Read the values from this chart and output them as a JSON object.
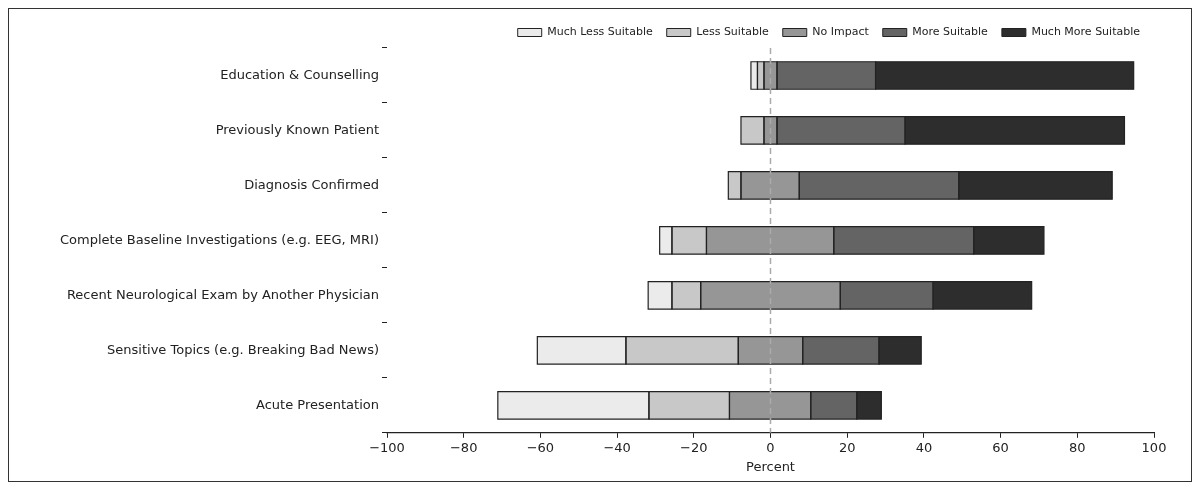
{
  "chart_data": {
    "type": "bar",
    "orientation": "horizontal",
    "xlabel": "Percent",
    "categories": [
      "Education & Counselling",
      "Previously Known Patient",
      "Diagnosis Confirmed",
      "Complete Baseline Investigations (e.g. EEG, MRI)",
      "Recent Neurological Exam by Another Physician",
      "Sensitive Topics (e.g. Breaking Bad News)",
      "Acute Presentation"
    ],
    "series": [
      {
        "name": "Much Less Suitable",
        "color": "#ebebeb",
        "base": [
          -5.1,
          null,
          null,
          -28.9,
          -31.9,
          -60.8,
          -71.1
        ],
        "values": [
          1.7,
          null,
          null,
          3.2,
          6.2,
          23.1,
          39.4
        ]
      },
      {
        "name": "Less Suitable",
        "color": "#c8c8c8",
        "base": [
          -3.4,
          -7.7,
          -11.0,
          -25.7,
          -25.7,
          -37.7,
          -31.7
        ],
        "values": [
          1.7,
          6.0,
          3.3,
          9.0,
          7.5,
          29.3,
          21.0
        ]
      },
      {
        "name": "No Impact",
        "color": "#969696",
        "base": [
          -1.7,
          -1.7,
          -7.7,
          -16.7,
          -18.2,
          -8.4,
          -10.7
        ],
        "values": [
          3.4,
          3.4,
          15.2,
          33.2,
          36.4,
          16.8,
          21.2
        ]
      },
      {
        "name": "More Suitable",
        "color": "#646464",
        "base": [
          1.7,
          1.7,
          7.5,
          16.5,
          18.2,
          8.4,
          10.5
        ],
        "values": [
          25.7,
          33.4,
          41.6,
          36.5,
          24.2,
          19.9,
          12.0
        ]
      },
      {
        "name": "Much More Suitable",
        "color": "#2d2d2d",
        "base": [
          27.4,
          35.1,
          49.1,
          53.0,
          42.4,
          28.3,
          22.5
        ],
        "values": [
          67.3,
          57.2,
          40.0,
          18.3,
          25.7,
          11.0,
          6.4
        ]
      }
    ],
    "xlim": [
      -100,
      100
    ],
    "xticks": [
      -100,
      -80,
      -60,
      -40,
      -20,
      0,
      20,
      40,
      60,
      80,
      100
    ],
    "ref_lines": [
      {
        "axis": "x",
        "value": 0,
        "color": "#aaaaaa",
        "line_style": "dashed"
      }
    ],
    "grid": false,
    "legend": "top"
  }
}
